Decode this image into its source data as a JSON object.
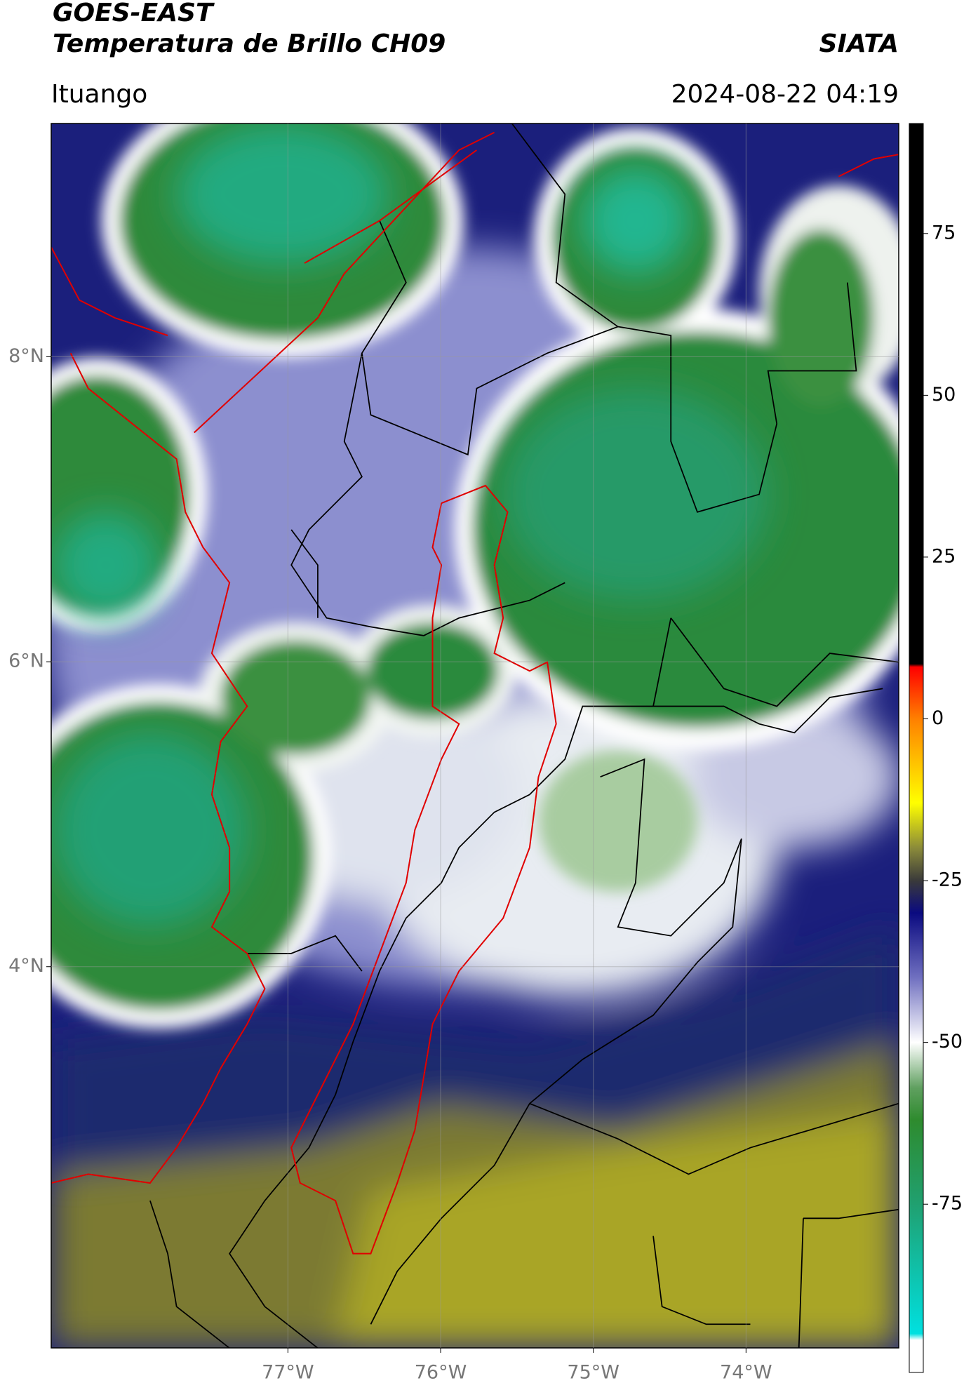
{
  "header": {
    "title": "GOES-EAST",
    "subtitle": "Temperatura de Brillo CH09",
    "source": "SIATA",
    "location": "Ituango",
    "datetime": "2024-08-22 04:19"
  },
  "map": {
    "type": "map",
    "xlim": [
      -78.55,
      -73.0
    ],
    "ylim": [
      1.5,
      9.53
    ],
    "xticks": [
      {
        "value": -77,
        "label": "77°W"
      },
      {
        "value": -76,
        "label": "76°W"
      },
      {
        "value": -75,
        "label": "75°W"
      },
      {
        "value": -74,
        "label": "74°W"
      }
    ],
    "yticks": [
      {
        "value": 8,
        "label": "8°N"
      },
      {
        "value": 6,
        "label": "6°N"
      },
      {
        "value": 4,
        "label": "4°N"
      }
    ],
    "grid": true
  },
  "colorbar": {
    "clim": [
      -101,
      92
    ],
    "ticks": [
      75,
      50,
      25,
      0,
      -25,
      -50,
      -75
    ],
    "colorscale": [
      [
        92,
        "#000000"
      ],
      [
        8.5,
        "#000000"
      ],
      [
        8,
        "#ff0000"
      ],
      [
        0,
        "#ff8000"
      ],
      [
        -13,
        "#ffff00"
      ],
      [
        -20,
        "#8a8a3a"
      ],
      [
        -25,
        "#3a3a3a"
      ],
      [
        -30,
        "#0a0a80"
      ],
      [
        -40,
        "#7070c0"
      ],
      [
        -50,
        "#ffffff"
      ],
      [
        -57,
        "#60a060"
      ],
      [
        -62,
        "#2e8b2e"
      ],
      [
        -75,
        "#20a070"
      ],
      [
        -95,
        "#00e0e0"
      ],
      [
        -96,
        "#ffffff"
      ],
      [
        -101,
        "#ffffff"
      ]
    ]
  }
}
